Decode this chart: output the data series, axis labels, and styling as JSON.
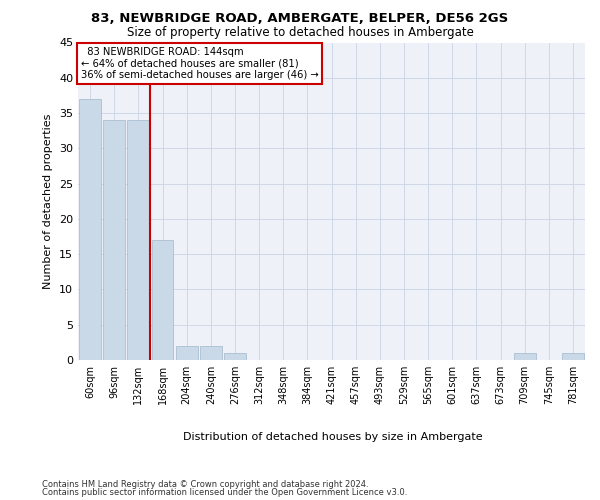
{
  "title": "83, NEWBRIDGE ROAD, AMBERGATE, BELPER, DE56 2GS",
  "subtitle": "Size of property relative to detached houses in Ambergate",
  "xlabel": "Distribution of detached houses by size in Ambergate",
  "ylabel": "Number of detached properties",
  "bar_color": "#c9d9e8",
  "bar_edge_color": "#a0b8cc",
  "bins": [
    "60sqm",
    "96sqm",
    "132sqm",
    "168sqm",
    "204sqm",
    "240sqm",
    "276sqm",
    "312sqm",
    "348sqm",
    "384sqm",
    "421sqm",
    "457sqm",
    "493sqm",
    "529sqm",
    "565sqm",
    "601sqm",
    "637sqm",
    "673sqm",
    "709sqm",
    "745sqm",
    "781sqm"
  ],
  "values": [
    37,
    34,
    34,
    17,
    2,
    2,
    1,
    0,
    0,
    0,
    0,
    0,
    0,
    0,
    0,
    0,
    0,
    0,
    1,
    0,
    1
  ],
  "ylim": [
    0,
    45
  ],
  "yticks": [
    0,
    5,
    10,
    15,
    20,
    25,
    30,
    35,
    40,
    45
  ],
  "property_label": "83 NEWBRIDGE ROAD: 144sqm",
  "pct_smaller": 64,
  "n_smaller": 81,
  "pct_larger": 36,
  "n_larger": 46,
  "vline_position": 2,
  "annotation_box_color": "#ffffff",
  "annotation_box_edge_color": "#cc0000",
  "vline_color": "#cc0000",
  "grid_color": "#d0d8e8",
  "background_color": "#eef2f8",
  "footer_line1": "Contains HM Land Registry data © Crown copyright and database right 2024.",
  "footer_line2": "Contains public sector information licensed under the Open Government Licence v3.0."
}
